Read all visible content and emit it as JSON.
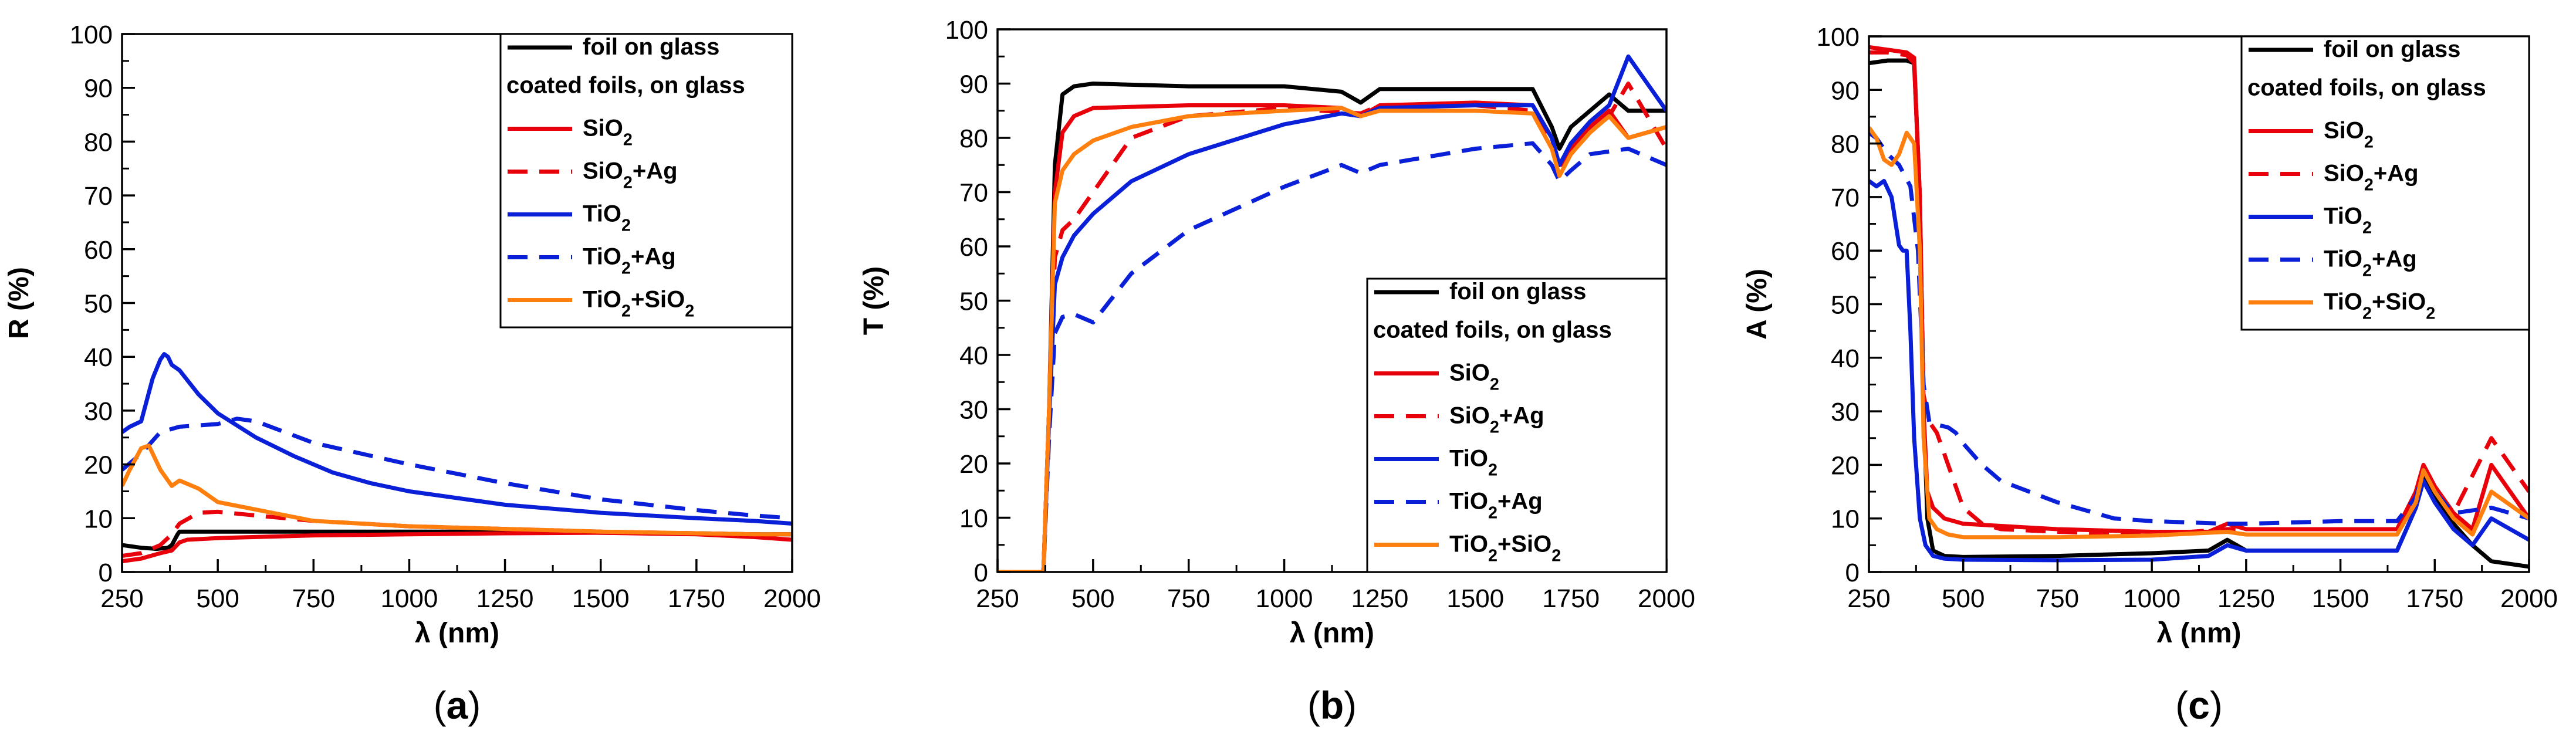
{
  "figure": {
    "panels": [
      "(a)",
      "(b)",
      "(c)"
    ]
  },
  "legend": {
    "items": [
      {
        "label": "foil on glass",
        "color": "#000000",
        "dash": false,
        "sub": false
      },
      {
        "label": "coated foils, on glass",
        "color": null,
        "dash": false,
        "sub": false
      },
      {
        "label": "SiO₂",
        "color": "#e8000b",
        "dash": false,
        "sub": true
      },
      {
        "label": "SiO₂+Ag",
        "color": "#e8000b",
        "dash": true,
        "sub": true
      },
      {
        "label": "TiO₂",
        "color": "#0a1fd8",
        "dash": false,
        "sub": true
      },
      {
        "label": "TiO₂+Ag",
        "color": "#0a1fd8",
        "dash": true,
        "sub": true
      },
      {
        "label": "TiO₂+SiO₂",
        "color": "#ff7f0e",
        "dash": false,
        "sub": true
      }
    ]
  },
  "chart_data": [
    {
      "type": "line",
      "panel": "(a)",
      "xlabel": "λ (nm)",
      "ylabel": "R (%)",
      "xlim": [
        250,
        2000
      ],
      "ylim": [
        0,
        100
      ],
      "xticks": [
        250,
        500,
        750,
        1000,
        1250,
        1500,
        1750,
        2000
      ],
      "yticks": [
        0,
        10,
        20,
        30,
        40,
        50,
        60,
        70,
        80,
        90,
        100
      ],
      "legend_position": "top-right",
      "series": [
        {
          "name": "foil on glass",
          "color": "#000000",
          "dash": false,
          "x": [
            250,
            300,
            340,
            370,
            380,
            395,
            400,
            500,
            750,
            1000,
            1250,
            1500,
            1750,
            1900,
            2000
          ],
          "y": [
            5,
            4.5,
            4.3,
            4.5,
            5,
            7,
            7.5,
            7.5,
            7.5,
            7.5,
            7.5,
            7.3,
            7.2,
            7,
            7
          ]
        },
        {
          "name": "SiO₂",
          "color": "#e8000b",
          "dash": false,
          "x": [
            250,
            300,
            350,
            380,
            400,
            420,
            500,
            750,
            1000,
            1250,
            1500,
            1750,
            1900,
            2000
          ],
          "y": [
            2,
            2.5,
            3.5,
            4,
            5.5,
            6,
            6.3,
            6.8,
            7,
            7.2,
            7.3,
            7,
            6.5,
            6
          ]
        },
        {
          "name": "SiO₂+Ag",
          "color": "#e8000b",
          "dash": true,
          "x": [
            250,
            300,
            350,
            380,
            400,
            450,
            500,
            600,
            750,
            1000,
            1250,
            1500,
            1750,
            1900,
            2000
          ],
          "y": [
            3,
            3.5,
            5,
            7,
            9,
            11,
            11.2,
            10.5,
            9.5,
            8.5,
            8,
            7.5,
            7.2,
            7,
            7
          ]
        },
        {
          "name": "TiO₂",
          "color": "#0a1fd8",
          "dash": false,
          "x": [
            250,
            270,
            300,
            330,
            350,
            360,
            370,
            380,
            400,
            450,
            500,
            600,
            700,
            800,
            900,
            1000,
            1250,
            1500,
            1750,
            1900,
            2000
          ],
          "y": [
            26,
            27,
            28,
            36,
            39.5,
            40.5,
            40,
            38.5,
            37.5,
            33,
            29.5,
            25,
            21.5,
            18.5,
            16.5,
            15,
            12.5,
            11,
            10,
            9.5,
            9
          ]
        },
        {
          "name": "TiO₂+Ag",
          "color": "#0a1fd8",
          "dash": true,
          "x": [
            250,
            300,
            350,
            400,
            500,
            550,
            600,
            750,
            1000,
            1250,
            1500,
            1750,
            1900,
            2000
          ],
          "y": [
            19,
            22,
            26,
            27,
            27.5,
            28.5,
            28,
            24,
            20,
            16.5,
            13.5,
            11.5,
            10.5,
            10
          ]
        },
        {
          "name": "TiO₂+SiO₂",
          "color": "#ff7f0e",
          "dash": false,
          "x": [
            250,
            270,
            300,
            320,
            350,
            380,
            400,
            450,
            500,
            750,
            1000,
            1250,
            1500,
            1750,
            1900,
            2000
          ],
          "y": [
            16,
            19,
            23,
            23.5,
            19,
            16,
            17,
            15.5,
            13,
            9.5,
            8.5,
            8,
            7.5,
            7.2,
            7,
            7
          ]
        }
      ]
    },
    {
      "type": "line",
      "panel": "(b)",
      "xlabel": "λ (nm)",
      "ylabel": "T (%)",
      "xlim": [
        250,
        2000
      ],
      "ylim": [
        0,
        100
      ],
      "xticks": [
        250,
        500,
        750,
        1000,
        1250,
        1500,
        1750,
        2000
      ],
      "yticks": [
        0,
        10,
        20,
        30,
        40,
        50,
        60,
        70,
        80,
        90,
        100
      ],
      "legend_position": "right",
      "series": [
        {
          "name": "foil on glass",
          "color": "#000000",
          "dash": false,
          "x": [
            250,
            370,
            385,
            400,
            420,
            450,
            500,
            750,
            1000,
            1150,
            1200,
            1250,
            1500,
            1650,
            1700,
            1720,
            1750,
            1800,
            1850,
            1900,
            2000
          ],
          "y": [
            0,
            0,
            30,
            75,
            88,
            89.5,
            90,
            89.5,
            89.5,
            88.5,
            86.5,
            89,
            89,
            89,
            82,
            78,
            82,
            85,
            88,
            85,
            85
          ]
        },
        {
          "name": "SiO₂",
          "color": "#e8000b",
          "dash": false,
          "x": [
            250,
            370,
            385,
            400,
            420,
            450,
            500,
            750,
            1000,
            1150,
            1200,
            1250,
            1500,
            1650,
            1700,
            1720,
            1750,
            1800,
            1850,
            1900,
            2000
          ],
          "y": [
            0,
            0,
            30,
            70,
            81,
            84,
            85.5,
            86,
            86,
            85.5,
            84,
            86,
            86.5,
            86,
            80,
            75,
            78,
            82,
            85,
            80,
            82
          ]
        },
        {
          "name": "SiO₂+Ag",
          "color": "#e8000b",
          "dash": true,
          "x": [
            250,
            370,
            385,
            400,
            420,
            450,
            500,
            600,
            750,
            1000,
            1200,
            1250,
            1500,
            1650,
            1700,
            1720,
            1750,
            1800,
            1850,
            1900,
            2000
          ],
          "y": [
            0,
            0,
            30,
            58,
            63,
            65,
            70,
            80,
            84,
            85.5,
            84.5,
            86,
            86,
            85,
            79,
            74,
            77,
            81,
            84,
            90,
            78
          ]
        },
        {
          "name": "TiO₂",
          "color": "#0a1fd8",
          "dash": false,
          "x": [
            250,
            370,
            385,
            400,
            420,
            450,
            500,
            600,
            750,
            1000,
            1150,
            1200,
            1250,
            1500,
            1650,
            1700,
            1720,
            1750,
            1800,
            1850,
            1900,
            2000
          ],
          "y": [
            0,
            0,
            28,
            53,
            58,
            62,
            66,
            72,
            77,
            82.5,
            84.5,
            84,
            85.5,
            86,
            86,
            80,
            75,
            79,
            83,
            86,
            95,
            85
          ]
        },
        {
          "name": "TiO₂+Ag",
          "color": "#0a1fd8",
          "dash": true,
          "x": [
            250,
            370,
            385,
            400,
            420,
            450,
            500,
            600,
            750,
            1000,
            1150,
            1200,
            1250,
            1500,
            1650,
            1700,
            1720,
            1750,
            1800,
            1900,
            2000
          ],
          "y": [
            0,
            0,
            25,
            44,
            47,
            47.5,
            46,
            55,
            63,
            71,
            75,
            73.5,
            75,
            78,
            79,
            75,
            72,
            74,
            77,
            78,
            75
          ]
        },
        {
          "name": "TiO₂+SiO₂",
          "color": "#ff7f0e",
          "dash": false,
          "x": [
            250,
            370,
            385,
            400,
            420,
            450,
            500,
            600,
            750,
            1000,
            1150,
            1200,
            1250,
            1500,
            1650,
            1700,
            1720,
            1750,
            1800,
            1850,
            1900,
            2000
          ],
          "y": [
            0,
            0,
            30,
            68,
            74,
            77,
            79.5,
            82,
            84,
            85,
            85.5,
            84,
            85,
            85,
            84.5,
            78,
            73,
            77,
            81,
            84,
            80,
            82
          ]
        }
      ]
    },
    {
      "type": "line",
      "panel": "(c)",
      "xlabel": "λ (nm)",
      "ylabel": "A (%)",
      "xlim": [
        250,
        2000
      ],
      "ylim": [
        0,
        100
      ],
      "xticks": [
        250,
        500,
        750,
        1000,
        1250,
        1500,
        1750,
        2000
      ],
      "yticks": [
        0,
        10,
        20,
        30,
        40,
        50,
        60,
        70,
        80,
        90,
        100
      ],
      "legend_position": "top-right",
      "series": [
        {
          "name": "foil on glass",
          "color": "#000000",
          "dash": false,
          "x": [
            250,
            300,
            350,
            370,
            385,
            395,
            405,
            420,
            450,
            500,
            750,
            1000,
            1150,
            1200,
            1250,
            1500,
            1650,
            1700,
            1720,
            1750,
            1800,
            1850,
            1900,
            2000
          ],
          "y": [
            95,
            95.5,
            95.5,
            95,
            70,
            30,
            10,
            4,
            3,
            2.8,
            3,
            3.5,
            4,
            6,
            4,
            4,
            4,
            12,
            18,
            14,
            9,
            5,
            2,
            1
          ]
        },
        {
          "name": "SiO₂",
          "color": "#e8000b",
          "dash": false,
          "x": [
            250,
            300,
            350,
            370,
            385,
            395,
            405,
            420,
            450,
            500,
            750,
            1000,
            1150,
            1200,
            1250,
            1500,
            1650,
            1700,
            1720,
            1750,
            1800,
            1850,
            1900,
            2000
          ],
          "y": [
            98,
            97.5,
            97,
            96,
            70,
            30,
            15,
            12,
            10,
            9,
            8,
            7.5,
            7.5,
            9,
            8,
            8,
            8,
            15,
            20,
            16,
            11,
            8,
            20,
            10
          ]
        },
        {
          "name": "SiO₂+Ag",
          "color": "#e8000b",
          "dash": true,
          "x": [
            250,
            300,
            350,
            370,
            385,
            395,
            410,
            430,
            450,
            500,
            550,
            600,
            750,
            1000,
            1200,
            1250,
            1500,
            1650,
            1700,
            1720,
            1750,
            1800,
            1900,
            2000
          ],
          "y": [
            97,
            97,
            96.5,
            95,
            70,
            33,
            28,
            26,
            22,
            12,
            9,
            8,
            7.5,
            7,
            8,
            8,
            8,
            8,
            15,
            20,
            16,
            11,
            25,
            15
          ]
        },
        {
          "name": "TiO₂",
          "color": "#0a1fd8",
          "dash": false,
          "x": [
            250,
            270,
            290,
            310,
            330,
            340,
            350,
            360,
            370,
            385,
            400,
            420,
            450,
            500,
            750,
            1000,
            1150,
            1200,
            1250,
            1500,
            1650,
            1700,
            1720,
            1750,
            1800,
            1850,
            1900,
            2000
          ],
          "y": [
            73,
            72,
            73,
            70,
            61,
            60,
            60,
            45,
            25,
            10,
            5,
            3,
            2.5,
            2.3,
            2.2,
            2.3,
            3,
            5,
            4,
            4,
            4,
            12,
            17,
            13,
            8,
            5,
            10,
            6
          ]
        },
        {
          "name": "TiO₂+Ag",
          "color": "#0a1fd8",
          "dash": true,
          "x": [
            250,
            270,
            300,
            330,
            360,
            380,
            395,
            410,
            430,
            460,
            480,
            500,
            550,
            600,
            750,
            900,
            1000,
            1200,
            1250,
            1500,
            1650,
            1700,
            1720,
            1750,
            1800,
            1900,
            2000
          ],
          "y": [
            82,
            81,
            78,
            76,
            72,
            60,
            35,
            28,
            27.5,
            27,
            26,
            24,
            20,
            17,
            13,
            10,
            9.5,
            9,
            9,
            9.5,
            9.5,
            14,
            19,
            15,
            11,
            12,
            10
          ]
        },
        {
          "name": "TiO₂+SiO₂",
          "color": "#ff7f0e",
          "dash": false,
          "x": [
            250,
            270,
            290,
            310,
            330,
            350,
            370,
            385,
            395,
            410,
            430,
            460,
            500,
            750,
            1000,
            1200,
            1250,
            1500,
            1650,
            1700,
            1720,
            1750,
            1800,
            1850,
            1900,
            2000
          ],
          "y": [
            83,
            81,
            77,
            76,
            78,
            82,
            80,
            60,
            25,
            10,
            8,
            7,
            6.5,
            6.5,
            6.8,
            7.5,
            7,
            7,
            7,
            13,
            19,
            15,
            10,
            7,
            15,
            10
          ]
        }
      ]
    }
  ]
}
